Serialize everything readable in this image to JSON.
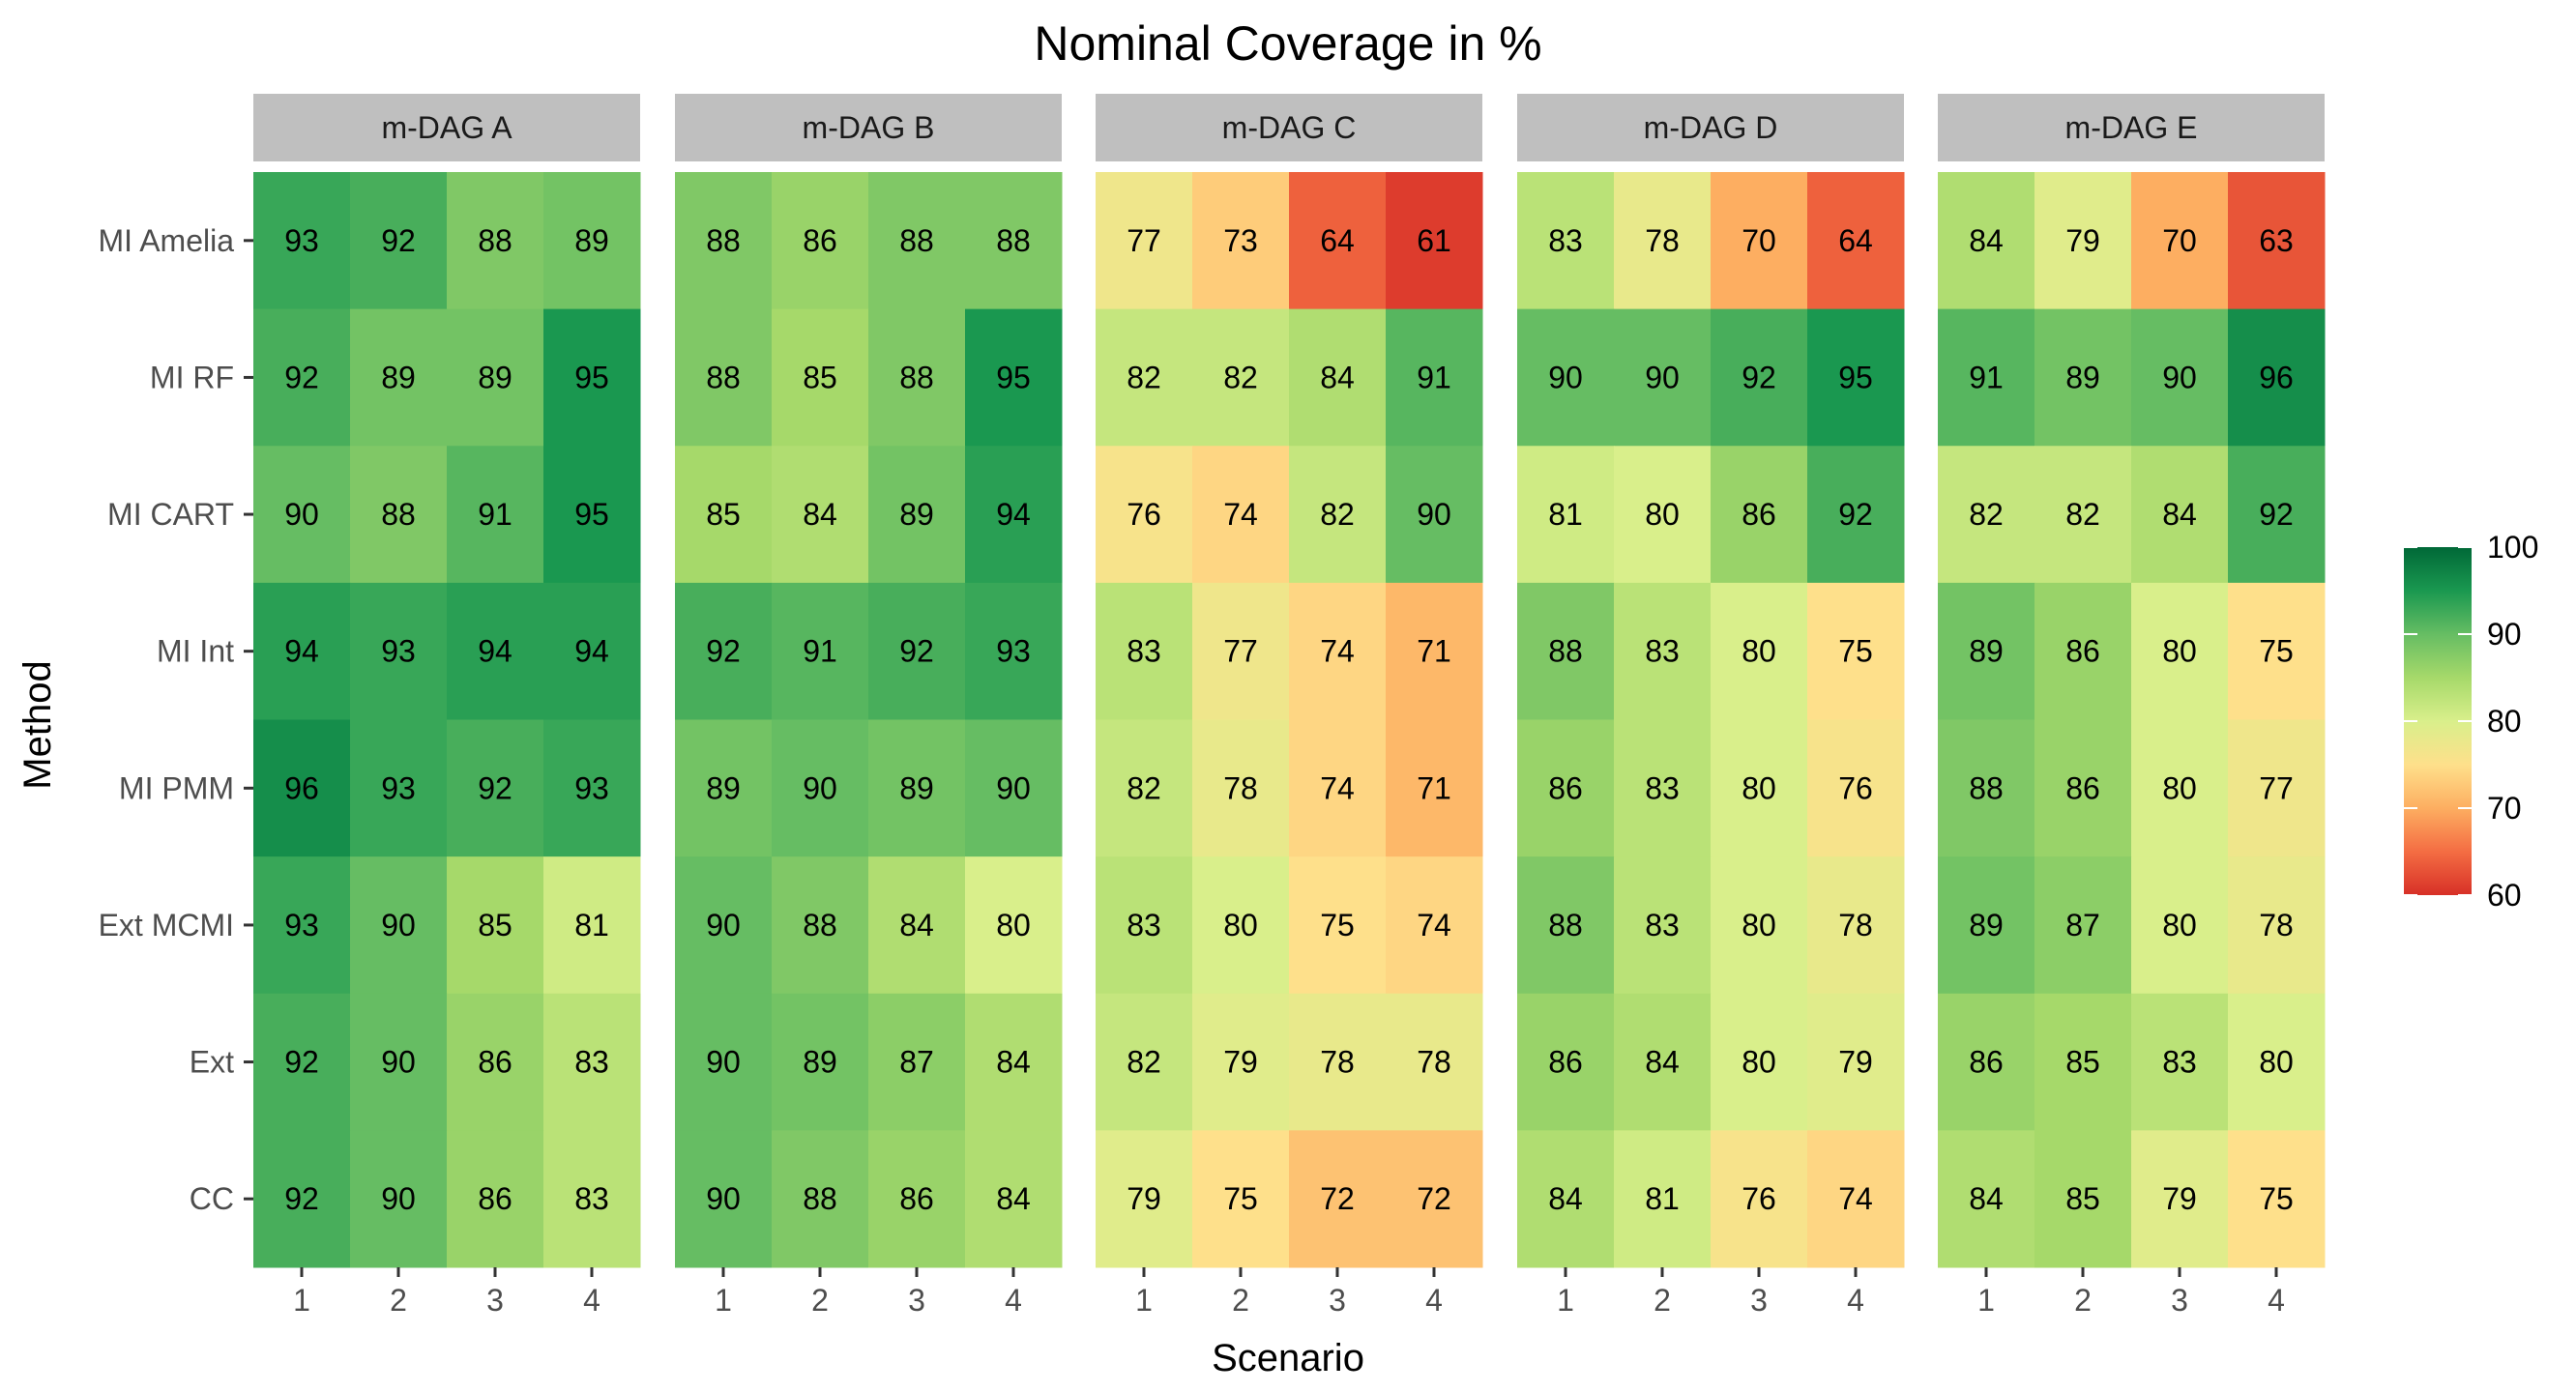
{
  "chart_data": {
    "type": "heatmap",
    "title": "Nominal Coverage in %",
    "xlabel": "Scenario",
    "ylabel": "Method",
    "facets": [
      "m-DAG A",
      "m-DAG B",
      "m-DAG C",
      "m-DAG D",
      "m-DAG E"
    ],
    "x": [
      "1",
      "2",
      "3",
      "4"
    ],
    "y": [
      "MI Amelia",
      "MI RF",
      "MI CART",
      "MI Int",
      "MI PMM",
      "Ext MCMI",
      "Ext",
      "CC"
    ],
    "values": [
      [
        [
          93,
          92,
          88,
          89
        ],
        [
          92,
          89,
          89,
          95
        ],
        [
          90,
          88,
          91,
          95
        ],
        [
          94,
          93,
          94,
          94
        ],
        [
          96,
          93,
          92,
          93
        ],
        [
          93,
          90,
          85,
          81
        ],
        [
          92,
          90,
          86,
          83
        ],
        [
          92,
          90,
          86,
          83
        ]
      ],
      [
        [
          88,
          86,
          88,
          88
        ],
        [
          88,
          85,
          88,
          95
        ],
        [
          85,
          84,
          89,
          94
        ],
        [
          92,
          91,
          92,
          93
        ],
        [
          89,
          90,
          89,
          90
        ],
        [
          90,
          88,
          84,
          80
        ],
        [
          90,
          89,
          87,
          84
        ],
        [
          90,
          88,
          86,
          84
        ]
      ],
      [
        [
          77,
          73,
          64,
          61
        ],
        [
          82,
          82,
          84,
          91
        ],
        [
          76,
          74,
          82,
          90
        ],
        [
          83,
          77,
          74,
          71
        ],
        [
          82,
          78,
          74,
          71
        ],
        [
          83,
          80,
          75,
          74
        ],
        [
          82,
          79,
          78,
          78
        ],
        [
          79,
          75,
          72,
          72
        ]
      ],
      [
        [
          83,
          78,
          70,
          64
        ],
        [
          90,
          90,
          92,
          95
        ],
        [
          81,
          80,
          86,
          92
        ],
        [
          88,
          83,
          80,
          75
        ],
        [
          86,
          83,
          80,
          76
        ],
        [
          88,
          83,
          80,
          78
        ],
        [
          86,
          84,
          80,
          79
        ],
        [
          84,
          81,
          76,
          74
        ]
      ],
      [
        [
          84,
          79,
          70,
          63
        ],
        [
          91,
          89,
          90,
          96
        ],
        [
          82,
          82,
          84,
          92
        ],
        [
          89,
          86,
          80,
          75
        ],
        [
          88,
          86,
          80,
          77
        ],
        [
          89,
          87,
          80,
          78
        ],
        [
          86,
          85,
          83,
          80
        ],
        [
          84,
          85,
          79,
          75
        ]
      ]
    ],
    "color_scale": {
      "type": "gradient",
      "range": [
        60,
        100
      ],
      "breaks": [
        100,
        90,
        80,
        70,
        60
      ],
      "colors": [
        "#d73027",
        "#f46d43",
        "#fdae61",
        "#fee08b",
        "#d9ef8b",
        "#a6d96a",
        "#66bd63",
        "#1a9850",
        "#006837"
      ]
    },
    "legend_position": "right"
  }
}
